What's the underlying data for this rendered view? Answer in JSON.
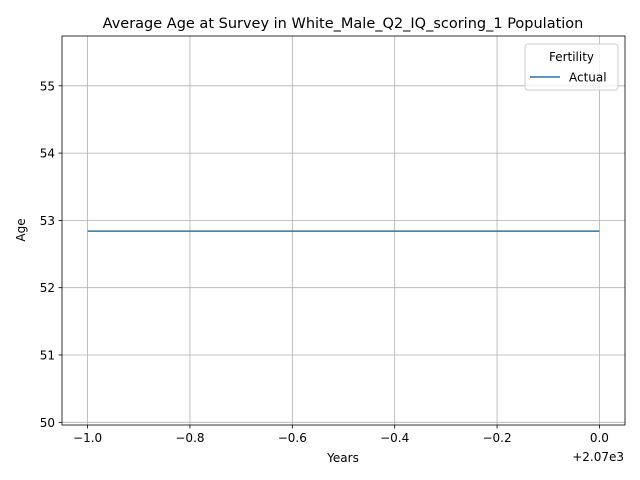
{
  "chart_data": {
    "type": "line",
    "title": "Average Age at Survey in White_Male_Q2_IQ_scoring_1 Population",
    "xlabel": "Years",
    "ylabel": "Age",
    "x_offset_label": "+2.07e3",
    "xlim": [
      -1.05,
      0.05
    ],
    "ylim": [
      49.96,
      55.74
    ],
    "x_ticks": [
      -1.0,
      -0.8,
      -0.6,
      -0.4,
      -0.2,
      0.0
    ],
    "x_tick_labels": [
      "−1.0",
      "−0.8",
      "−0.6",
      "−0.4",
      "−0.2",
      "0.0"
    ],
    "y_ticks": [
      50,
      51,
      52,
      53,
      54,
      55
    ],
    "y_tick_labels": [
      "50",
      "51",
      "52",
      "53",
      "54",
      "55"
    ],
    "grid": true,
    "legend": {
      "title": "Fertility",
      "placement": "top-right"
    },
    "series": [
      {
        "name": "Actual",
        "color": "#1f77b4",
        "x": [
          -1.0,
          0.0
        ],
        "y": [
          52.84,
          52.84
        ]
      }
    ]
  }
}
